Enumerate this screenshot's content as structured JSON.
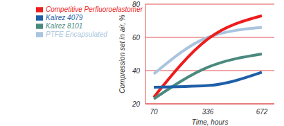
{
  "chart_data": {
    "type": "line",
    "x_label": "Time, hours",
    "y_label": "Compression set in air, %",
    "categories": [
      "70",
      "336",
      "672"
    ],
    "series": [
      {
        "name": "PTFE Encapsulated",
        "color": "#a9c4de",
        "values": [
          38,
          60,
          66
        ]
      },
      {
        "name": "Competitive Perfluoroelastomer",
        "color": "#ee1c1c",
        "values": [
          24,
          59,
          73
        ]
      },
      {
        "name": "Kalrez 8101",
        "color": "#4a8a7e",
        "values": [
          23,
          42,
          50
        ]
      },
      {
        "name": "Kalrez 4079",
        "color": "#1f5fa8",
        "values": [
          30,
          31,
          39
        ]
      }
    ],
    "ylim": [
      20,
      80
    ],
    "yticks": [
      20,
      40,
      60,
      80
    ],
    "grid": true,
    "legend": "upper left"
  }
}
